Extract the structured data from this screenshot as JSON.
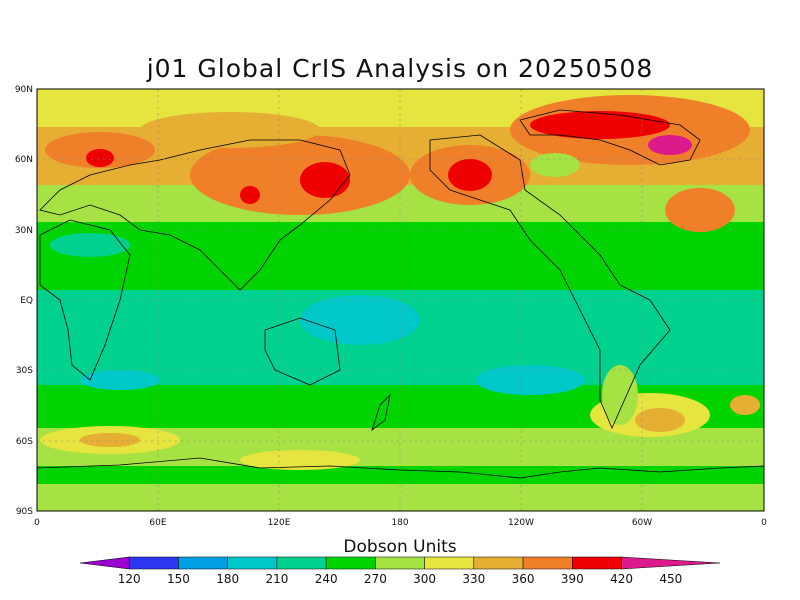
{
  "title": "j01 Global CrIS Analysis on 20250508",
  "map": {
    "lat_labels": [
      "90N",
      "60N",
      "30N",
      "EQ",
      "30S",
      "60S",
      "90S"
    ],
    "lon_labels": [
      "0",
      "60E",
      "120E",
      "180",
      "120W",
      "60W",
      "0"
    ]
  },
  "colorbar": {
    "title": "Dobson Units",
    "ticks": [
      "120",
      "150",
      "180",
      "210",
      "240",
      "270",
      "300",
      "330",
      "360",
      "390",
      "420",
      "450"
    ],
    "colors": [
      "#9b00d0",
      "#2a37ef",
      "#009ee2",
      "#00c8c8",
      "#00d18e",
      "#00d400",
      "#a6e243",
      "#e6e43f",
      "#e6ae33",
      "#f07f2a",
      "#ee0000",
      "#dd1a8c"
    ]
  }
}
